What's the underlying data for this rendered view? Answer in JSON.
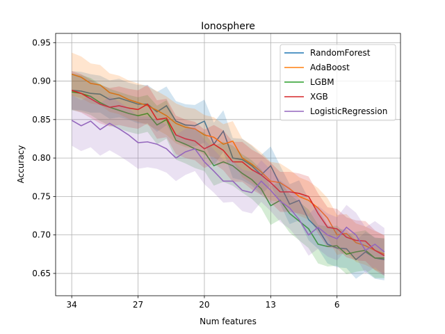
{
  "chart_data": {
    "type": "line",
    "title": "Ionosphere",
    "xlabel": "Num features",
    "ylabel": "Accuracy",
    "x": [
      34,
      33,
      32,
      31,
      30,
      29,
      28,
      27,
      26,
      25,
      24,
      23,
      22,
      21,
      20,
      19,
      18,
      17,
      16,
      15,
      14,
      13,
      12,
      11,
      10,
      9,
      8,
      7,
      6,
      5,
      4,
      3,
      2,
      1
    ],
    "xlim": [
      35.7,
      -0.7
    ],
    "xticks": [
      34,
      27,
      20,
      13,
      6
    ],
    "ylim": [
      0.621,
      0.962
    ],
    "yticks": [
      {
        "value": 0.65,
        "label": "0.65"
      },
      {
        "value": 0.7,
        "label": "0.70"
      },
      {
        "value": 0.75,
        "label": "0.75"
      },
      {
        "value": 0.8,
        "label": "0.80"
      },
      {
        "value": 0.85,
        "label": "0.85"
      },
      {
        "value": 0.9,
        "label": "0.90"
      },
      {
        "value": 0.95,
        "label": "0.95"
      }
    ],
    "grid": true,
    "legend": "upper right",
    "series": [
      {
        "name": "RandomForest",
        "color": "#1f77b4",
        "values": [
          0.888,
          0.887,
          0.884,
          0.883,
          0.876,
          0.878,
          0.874,
          0.87,
          0.87,
          0.86,
          0.868,
          0.848,
          0.843,
          0.842,
          0.848,
          0.818,
          0.835,
          0.8,
          0.798,
          0.79,
          0.778,
          0.79,
          0.765,
          0.74,
          0.745,
          0.72,
          0.708,
          0.688,
          0.683,
          0.682,
          0.668,
          0.678,
          0.67,
          0.668
        ],
        "std": [
          0.025,
          0.025,
          0.025,
          0.024,
          0.025,
          0.025,
          0.024,
          0.025,
          0.025,
          0.026,
          0.025,
          0.026,
          0.027,
          0.027,
          0.028,
          0.028,
          0.027,
          0.026,
          0.027,
          0.026,
          0.026,
          0.025,
          0.025,
          0.026,
          0.026,
          0.027,
          0.026,
          0.025,
          0.025,
          0.025,
          0.025,
          0.026,
          0.027,
          0.027
        ]
      },
      {
        "name": "AdaBoost",
        "color": "#ff7f0e",
        "values": [
          0.909,
          0.905,
          0.897,
          0.895,
          0.885,
          0.882,
          0.876,
          0.872,
          0.868,
          0.862,
          0.855,
          0.845,
          0.84,
          0.838,
          0.83,
          0.827,
          0.818,
          0.822,
          0.8,
          0.792,
          0.782,
          0.77,
          0.768,
          0.76,
          0.75,
          0.745,
          0.735,
          0.722,
          0.7,
          0.702,
          0.69,
          0.686,
          0.68,
          0.675
        ],
        "std": [
          0.028,
          0.027,
          0.026,
          0.026,
          0.025,
          0.025,
          0.025,
          0.025,
          0.025,
          0.025,
          0.025,
          0.026,
          0.026,
          0.026,
          0.026,
          0.026,
          0.026,
          0.026,
          0.025,
          0.025,
          0.025,
          0.025,
          0.025,
          0.025,
          0.025,
          0.025,
          0.026,
          0.026,
          0.026,
          0.025,
          0.025,
          0.025,
          0.025,
          0.025
        ]
      },
      {
        "name": "LGBM",
        "color": "#2ca02c",
        "values": [
          0.886,
          0.884,
          0.88,
          0.872,
          0.866,
          0.862,
          0.858,
          0.855,
          0.858,
          0.843,
          0.85,
          0.823,
          0.818,
          0.812,
          0.808,
          0.79,
          0.795,
          0.79,
          0.78,
          0.772,
          0.76,
          0.738,
          0.745,
          0.728,
          0.718,
          0.708,
          0.688,
          0.685,
          0.686,
          0.675,
          0.678,
          0.68,
          0.67,
          0.67
        ],
        "std": [
          0.024,
          0.024,
          0.024,
          0.024,
          0.024,
          0.024,
          0.024,
          0.024,
          0.024,
          0.025,
          0.025,
          0.025,
          0.025,
          0.025,
          0.025,
          0.026,
          0.026,
          0.026,
          0.025,
          0.025,
          0.025,
          0.025,
          0.025,
          0.025,
          0.025,
          0.025,
          0.025,
          0.026,
          0.026,
          0.026,
          0.026,
          0.026,
          0.026,
          0.026
        ]
      },
      {
        "name": "XGB",
        "color": "#d62728",
        "values": [
          0.888,
          0.884,
          0.877,
          0.87,
          0.866,
          0.868,
          0.865,
          0.863,
          0.87,
          0.85,
          0.852,
          0.83,
          0.825,
          0.822,
          0.812,
          0.818,
          0.81,
          0.795,
          0.795,
          0.785,
          0.778,
          0.768,
          0.756,
          0.756,
          0.754,
          0.75,
          0.728,
          0.71,
          0.708,
          0.697,
          0.693,
          0.692,
          0.68,
          0.673
        ],
        "std": [
          0.025,
          0.025,
          0.025,
          0.025,
          0.025,
          0.025,
          0.025,
          0.025,
          0.025,
          0.025,
          0.025,
          0.025,
          0.025,
          0.025,
          0.025,
          0.025,
          0.026,
          0.026,
          0.026,
          0.026,
          0.026,
          0.026,
          0.026,
          0.026,
          0.026,
          0.026,
          0.026,
          0.026,
          0.026,
          0.026,
          0.026,
          0.026,
          0.026,
          0.026
        ]
      },
      {
        "name": "LogisticRegression",
        "color": "#9467bd",
        "values": [
          0.849,
          0.842,
          0.848,
          0.837,
          0.845,
          0.838,
          0.83,
          0.82,
          0.821,
          0.818,
          0.812,
          0.8,
          0.808,
          0.812,
          0.795,
          0.783,
          0.77,
          0.77,
          0.758,
          0.755,
          0.77,
          0.758,
          0.744,
          0.735,
          0.72,
          0.7,
          0.71,
          0.7,
          0.695,
          0.71,
          0.7,
          0.68,
          0.688,
          0.678
        ],
        "std": [
          0.033,
          0.033,
          0.034,
          0.034,
          0.035,
          0.035,
          0.035,
          0.034,
          0.033,
          0.032,
          0.031,
          0.03,
          0.03,
          0.029,
          0.029,
          0.028,
          0.028,
          0.027,
          0.027,
          0.027,
          0.027,
          0.027,
          0.027,
          0.027,
          0.027,
          0.027,
          0.028,
          0.028,
          0.028,
          0.029,
          0.029,
          0.03,
          0.03,
          0.031
        ]
      }
    ]
  }
}
